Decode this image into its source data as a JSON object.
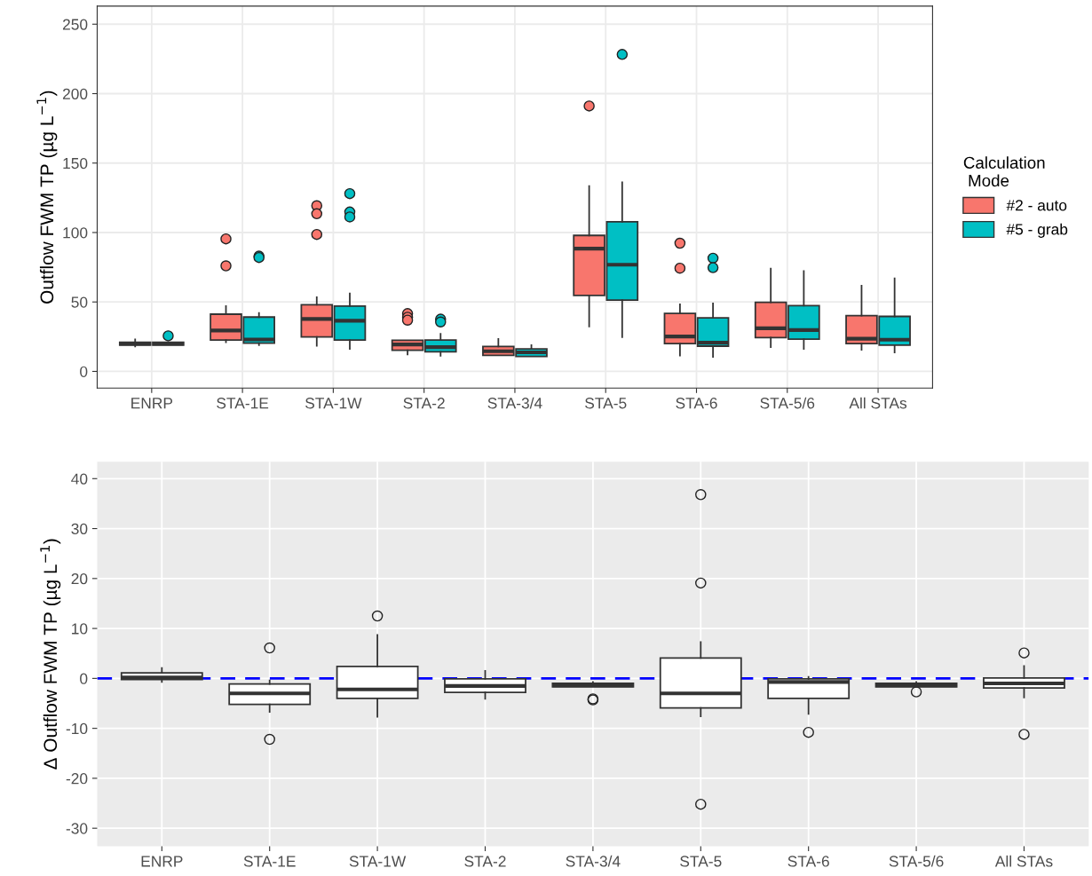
{
  "chart_data": [
    {
      "type": "box",
      "ylabel": "Outflow FWM TP (µg L$^{−1}$)",
      "legend_title": "Calculation\n Mode",
      "legend": "right",
      "grid": true,
      "categories": [
        "ENRP",
        "STA-1E",
        "STA-1W",
        "STA-2",
        "STA-3/4",
        "STA-5",
        "STA-6",
        "STA-5/6",
        "All STAs"
      ],
      "ylim": [
        -12,
        263
      ],
      "yticks": [
        0,
        50,
        100,
        150,
        200,
        250
      ],
      "series": [
        {
          "name": "#2 - auto",
          "color": "#f8766d",
          "boxes": [
            {
              "low": 18,
              "q1": 19,
              "median": 20,
              "q3": 21,
              "high": 23
            },
            {
              "low": 21,
              "q1": 22.6,
              "median": 29.4,
              "q3": 41.2,
              "high": 47,
              "outliers": [
                95.4,
                76
              ]
            },
            {
              "low": 18.4,
              "q1": 24.8,
              "median": 37.8,
              "q3": 48,
              "high": 53.4,
              "outliers": [
                119.3,
                113.5,
                98.6
              ]
            },
            {
              "low": 12.2,
              "q1": 15.2,
              "median": 19.4,
              "q3": 22.4,
              "high": 22.4,
              "outliers": [
                41.6,
                39,
                36.9
              ]
            },
            {
              "low": 11.5,
              "q1": 11.5,
              "median": 14.5,
              "q3": 17.9,
              "high": 23.3
            },
            {
              "low": 32.3,
              "q1": 54.7,
              "median": 88.4,
              "q3": 97.9,
              "high": 133.5,
              "outliers": [
                191.1
              ]
            },
            {
              "low": 11.4,
              "q1": 20,
              "median": 25.1,
              "q3": 41.7,
              "high": 48.3,
              "outliers": [
                92.3,
                74.3
              ]
            },
            {
              "low": 17.5,
              "q1": 24.4,
              "median": 31,
              "q3": 49.7,
              "high": 74
            },
            {
              "low": 15.5,
              "q1": 20,
              "median": 23.5,
              "q3": 40.1,
              "high": 61.7
            }
          ]
        },
        {
          "name": "#5 - grab",
          "color": "#00bfc4",
          "boxes": [
            {
              "low": 19,
              "q1": 19,
              "median": 20,
              "q3": 21,
              "high": 21,
              "outliers": [
                25.6
              ]
            },
            {
              "low": 19,
              "q1": 20.3,
              "median": 23,
              "q3": 39.1,
              "high": 42,
              "outliers": [
                83,
                82
              ]
            },
            {
              "low": 16.2,
              "q1": 22.6,
              "median": 36.5,
              "q3": 47,
              "high": 56.1,
              "outliers": [
                128,
                114.8,
                111.2
              ]
            },
            {
              "low": 11.3,
              "q1": 14.1,
              "median": 17.5,
              "q3": 22.6,
              "high": 27,
              "outliers": [
                37.6,
                35.6
              ]
            },
            {
              "low": 10.7,
              "q1": 10.7,
              "median": 13.7,
              "q3": 16.2,
              "high": 18.9
            },
            {
              "low": 24.6,
              "q1": 51.3,
              "median": 76.8,
              "q3": 107.7,
              "high": 136.2,
              "outliers": [
                228.2
              ]
            },
            {
              "low": 10.5,
              "q1": 18.2,
              "median": 20.7,
              "q3": 38.5,
              "high": 49,
              "outliers": [
                81.5,
                74.7
              ]
            },
            {
              "low": 16.2,
              "q1": 23.2,
              "median": 29.8,
              "q3": 47.4,
              "high": 72.2
            },
            {
              "low": 13.7,
              "q1": 18.9,
              "median": 22.8,
              "q3": 39.6,
              "high": 67
            }
          ]
        }
      ]
    },
    {
      "type": "box",
      "ylabel": "Δ Outflow FWM TP (µg L$^{−1}$)",
      "grid": true,
      "categories": [
        "ENRP",
        "STA-1E",
        "STA-1W",
        "STA-2",
        "STA-3/4",
        "STA-5",
        "STA-6",
        "STA-5/6",
        "All STAs"
      ],
      "ylim": [
        -33.6,
        43.4
      ],
      "yticks": [
        -30,
        -20,
        -10,
        0,
        10,
        20,
        30,
        40
      ],
      "ref_lines": [
        {
          "axis": "y",
          "value": 0,
          "color": "#0000ff",
          "line_style": "dashed"
        }
      ],
      "series": [
        {
          "color": "#ffffff",
          "boxes": [
            {
              "low": -0.7,
              "q1": -0.2,
              "median": 0.2,
              "q3": 1.1,
              "high": 2.1
            },
            {
              "low": -6.7,
              "q1": -5.2,
              "median": -3.0,
              "q3": -1.1,
              "high": -0.4,
              "outliers": [
                6.1,
                -12.2
              ]
            },
            {
              "low": -7.7,
              "q1": -4.0,
              "median": -2.2,
              "q3": 2.4,
              "high": 8.7,
              "outliers": [
                12.5
              ]
            },
            {
              "low": -4.1,
              "q1": -2.8,
              "median": -1.5,
              "q3": -0.1,
              "high": 1.5
            },
            {
              "low": -1.7,
              "q1": -1.7,
              "median": -1.4,
              "q3": -1.0,
              "high": -0.7,
              "outliers": [
                -4.1,
                -4.3
              ]
            },
            {
              "low": -7.6,
              "q1": -5.9,
              "median": -3.0,
              "q3": 4.1,
              "high": 7.3,
              "outliers": [
                36.8,
                19.1,
                -25.2
              ]
            },
            {
              "low": -7.1,
              "q1": -4.0,
              "median": -0.7,
              "q3": -0.1,
              "high": 0.3,
              "outliers": [
                -10.8
              ]
            },
            {
              "low": -1.7,
              "q1": -1.7,
              "median": -1.4,
              "q3": -1.0,
              "high": -0.7,
              "outliers": [
                -2.7
              ]
            },
            {
              "low": -3.8,
              "q1": -1.9,
              "median": -1.0,
              "q3": 0.1,
              "high": 2.5,
              "outliers": [
                5.1,
                -11.2
              ]
            }
          ]
        }
      ]
    }
  ]
}
